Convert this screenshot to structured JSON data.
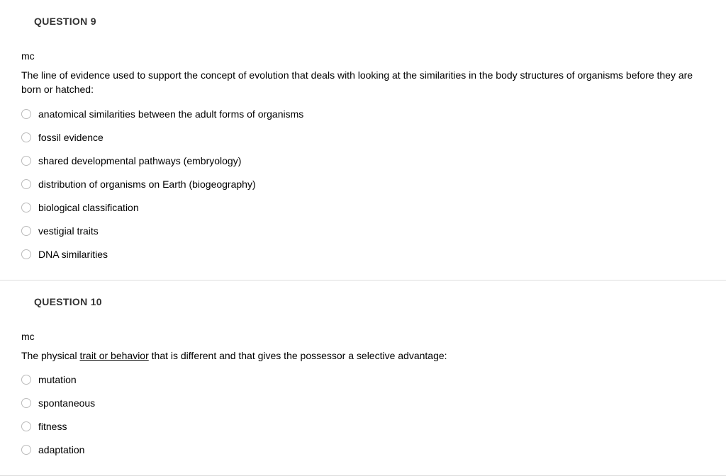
{
  "questions": [
    {
      "title": "QUESTION 9",
      "type": "mc",
      "prompt": "The line of evidence used to support the concept of evolution that deals with looking at the similarities in the body structures of organisms before they are born or hatched:",
      "options": [
        "anatomical similarities between the adult forms of organisms",
        "fossil evidence",
        "shared developmental pathways (embryology)",
        "distribution of organisms on Earth (biogeography)",
        "biological classification",
        "vestigial traits",
        "DNA similarities"
      ]
    },
    {
      "title": "QUESTION 10",
      "type": "mc",
      "prompt_pre": "The physical ",
      "prompt_underlined": "trait or behavior",
      "prompt_post": " that is different and that gives the possessor a selective advantage:",
      "options": [
        "mutation",
        "spontaneous",
        "fitness",
        "adaptation"
      ]
    }
  ],
  "colors": {
    "text": "#000000",
    "title": "#333333",
    "border": "#dddddd",
    "radio_border": "#bbbbbb",
    "background": "#ffffff"
  }
}
